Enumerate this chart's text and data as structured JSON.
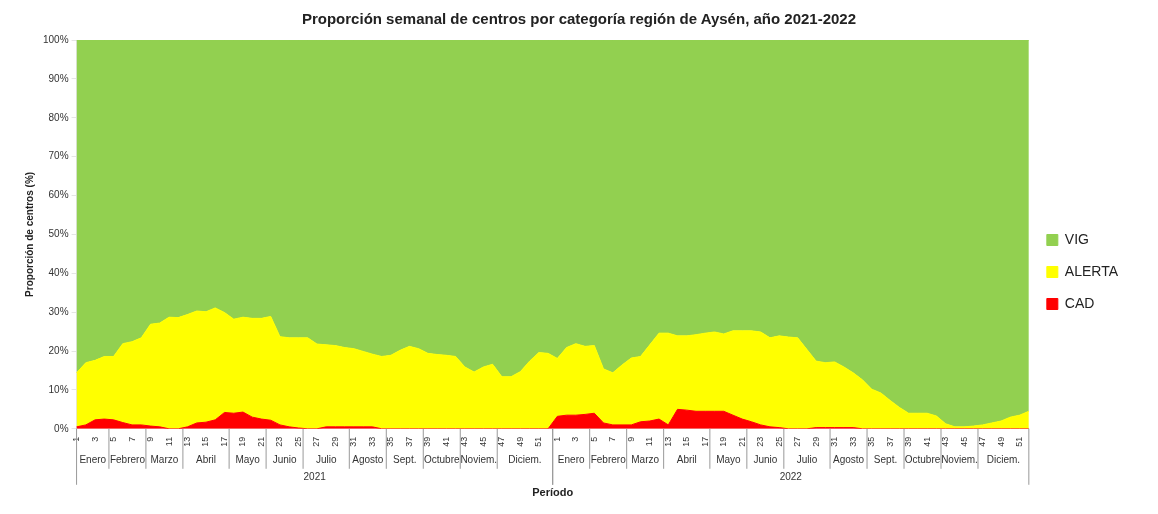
{
  "chart_data": {
    "type": "area",
    "stacked": true,
    "title": "Proporción semanal de centros por categoría región de Aysén, año 2021-2022",
    "xlabel": "Período",
    "ylabel": "Proporción de centros (%)",
    "categories": [
      "1",
      null,
      "3",
      null,
      "5",
      null,
      "7",
      null,
      "9",
      null,
      "11",
      null,
      "13",
      null,
      "15",
      null,
      "17",
      null,
      "19",
      null,
      "21",
      null,
      "23",
      null,
      "25",
      null,
      "27",
      null,
      "29",
      null,
      "31",
      null,
      "33",
      null,
      "35",
      null,
      "37",
      null,
      "39",
      null,
      "41",
      null,
      "43",
      null,
      "45",
      null,
      "47",
      null,
      "49",
      null,
      "51",
      null,
      "1",
      null,
      "3",
      null,
      "5",
      null,
      "7",
      null,
      "9",
      null,
      "11",
      null,
      "13",
      null,
      "15",
      null,
      "17",
      null,
      "19",
      null,
      "21",
      null,
      "23",
      null,
      "25",
      null,
      "27",
      null,
      "29",
      null,
      "31",
      null,
      "33",
      null,
      "35",
      null,
      "37",
      null,
      "39",
      null,
      "41",
      null,
      "43",
      null,
      "45",
      null,
      "47",
      null,
      "49",
      null,
      "51",
      null
    ],
    "series": [
      {
        "name": "CAD",
        "color": "#ff0000",
        "values": [
          0.5,
          1,
          2.3,
          2.5,
          2.3,
          1.6,
          1,
          1,
          0.7,
          0.5,
          0,
          0,
          0.5,
          1.5,
          1.7,
          2.3,
          4.2,
          4,
          4.3,
          3,
          2.5,
          2.2,
          1,
          0.5,
          0.2,
          0,
          0,
          0.5,
          0.5,
          0.5,
          0.5,
          0.5,
          0.5,
          0,
          0,
          0,
          0,
          0,
          0,
          0,
          0,
          0,
          0,
          0,
          0,
          0,
          0,
          0,
          0,
          0,
          0,
          0,
          3.2,
          3.5,
          3.5,
          3.7,
          4,
          1.5,
          1,
          1,
          1,
          1.8,
          2,
          2.5,
          1,
          5,
          4.8,
          4.5,
          4.5,
          4.5,
          4.5,
          3.5,
          2.5,
          1.8,
          1,
          0.5,
          0.3,
          0,
          0,
          0,
          0.3,
          0.3,
          0.3,
          0.3,
          0.3,
          0,
          0,
          0,
          0,
          0,
          0,
          0,
          0,
          0,
          0,
          0,
          0,
          0,
          0,
          0,
          0,
          0,
          0,
          0
        ]
      },
      {
        "name": "ALERTA",
        "color": "#ffff00",
        "values": [
          13.9,
          16,
          15.3,
          16.1,
          16.3,
          20.3,
          21.4,
          22.4,
          26.2,
          26.7,
          28.7,
          28.6,
          28.9,
          28.8,
          28.4,
          28.8,
          25.7,
          24.2,
          24.4,
          25.4,
          25.9,
          26.7,
          22.7,
          22.9,
          23.2,
          23.4,
          21.8,
          21.1,
          20.9,
          20.4,
          20.1,
          19.4,
          18.7,
          18.6,
          18.9,
          20.2,
          21.2,
          20.6,
          19.4,
          19.1,
          18.9,
          18.6,
          15.9,
          14.6,
          15.9,
          16.6,
          13.4,
          13.4,
          14.7,
          17.4,
          19.6,
          19.4,
          14.9,
          17.4,
          18.4,
          17.5,
          17.4,
          13.9,
          13.4,
          15.4,
          17.2,
          16.8,
          19.6,
          22.1,
          23.6,
          18.9,
          19.1,
          19.7,
          20.1,
          20.4,
          19.9,
          21.7,
          22.7,
          23.4,
          23.9,
          22.9,
          23.6,
          23.6,
          23.4,
          20.4,
          17.1,
          16.7,
          16.9,
          15.6,
          14.1,
          12.6,
          10.2,
          9.2,
          7.3,
          5.5,
          4,
          4,
          4,
          3.3,
          1.3,
          0.5,
          0.5,
          0.7,
          1,
          1.5,
          2,
          3,
          3.5,
          4.5
        ]
      },
      {
        "name": "VIG",
        "color": "#92d050",
        "values": [
          85.6,
          83,
          82.4,
          81.4,
          81.4,
          78.1,
          77.6,
          76.6,
          73.1,
          72.8,
          71.3,
          71.4,
          70.6,
          69.7,
          69.9,
          68.9,
          70.1,
          71.8,
          71.3,
          71.6,
          71.6,
          71.1,
          76.3,
          76.6,
          76.6,
          76.6,
          78.2,
          78.4,
          78.6,
          79.1,
          79.4,
          80.1,
          80.8,
          81.4,
          81.1,
          79.8,
          78.8,
          79.4,
          80.6,
          80.9,
          81.1,
          81.4,
          84.1,
          85.4,
          84.1,
          83.4,
          86.6,
          86.6,
          85.3,
          82.6,
          80.4,
          80.6,
          81.9,
          79.1,
          78.1,
          78.8,
          78.6,
          84.6,
          85.6,
          83.6,
          81.8,
          81.4,
          78.4,
          75.4,
          75.4,
          76.1,
          76.1,
          75.8,
          75.4,
          75.1,
          75.6,
          74.8,
          74.8,
          74.8,
          75.1,
          76.6,
          76.1,
          76.4,
          76.6,
          79.6,
          82.6,
          83,
          82.8,
          84.1,
          85.6,
          87.4,
          89.8,
          90.8,
          92.7,
          94.5,
          96,
          96,
          96,
          96.7,
          98.7,
          99.5,
          99.5,
          99.3,
          99,
          98.5,
          98,
          97,
          96.5,
          95.5
        ]
      }
    ],
    "ylim": [
      0,
      100
    ],
    "yticks": [
      {
        "value": 0,
        "label": "0%"
      },
      {
        "value": 10,
        "label": "10%"
      },
      {
        "value": 20,
        "label": "20%"
      },
      {
        "value": 30,
        "label": "30%"
      },
      {
        "value": 40,
        "label": "40%"
      },
      {
        "value": 50,
        "label": "50%"
      },
      {
        "value": 60,
        "label": "60%"
      },
      {
        "value": 70,
        "label": "70%"
      },
      {
        "value": 80,
        "label": "80%"
      },
      {
        "value": 90,
        "label": "90%"
      },
      {
        "value": 100,
        "label": "100%"
      }
    ],
    "legend": "right",
    "annotations": [
      "Enero",
      "Febrero",
      "Marzo",
      "Abril",
      "Mayo",
      "Junio",
      "Julio",
      "Agosto",
      "Sept.",
      "Octubre",
      "Noviem.",
      "Diciem.",
      "2021",
      "Enero",
      "Febrero",
      "Marzo",
      "Abril",
      "Mayo",
      "Junio",
      "Julio",
      "Agosto",
      "Sept.",
      "Octubre",
      "Noviem.",
      "Diciem.",
      "2022"
    ]
  }
}
